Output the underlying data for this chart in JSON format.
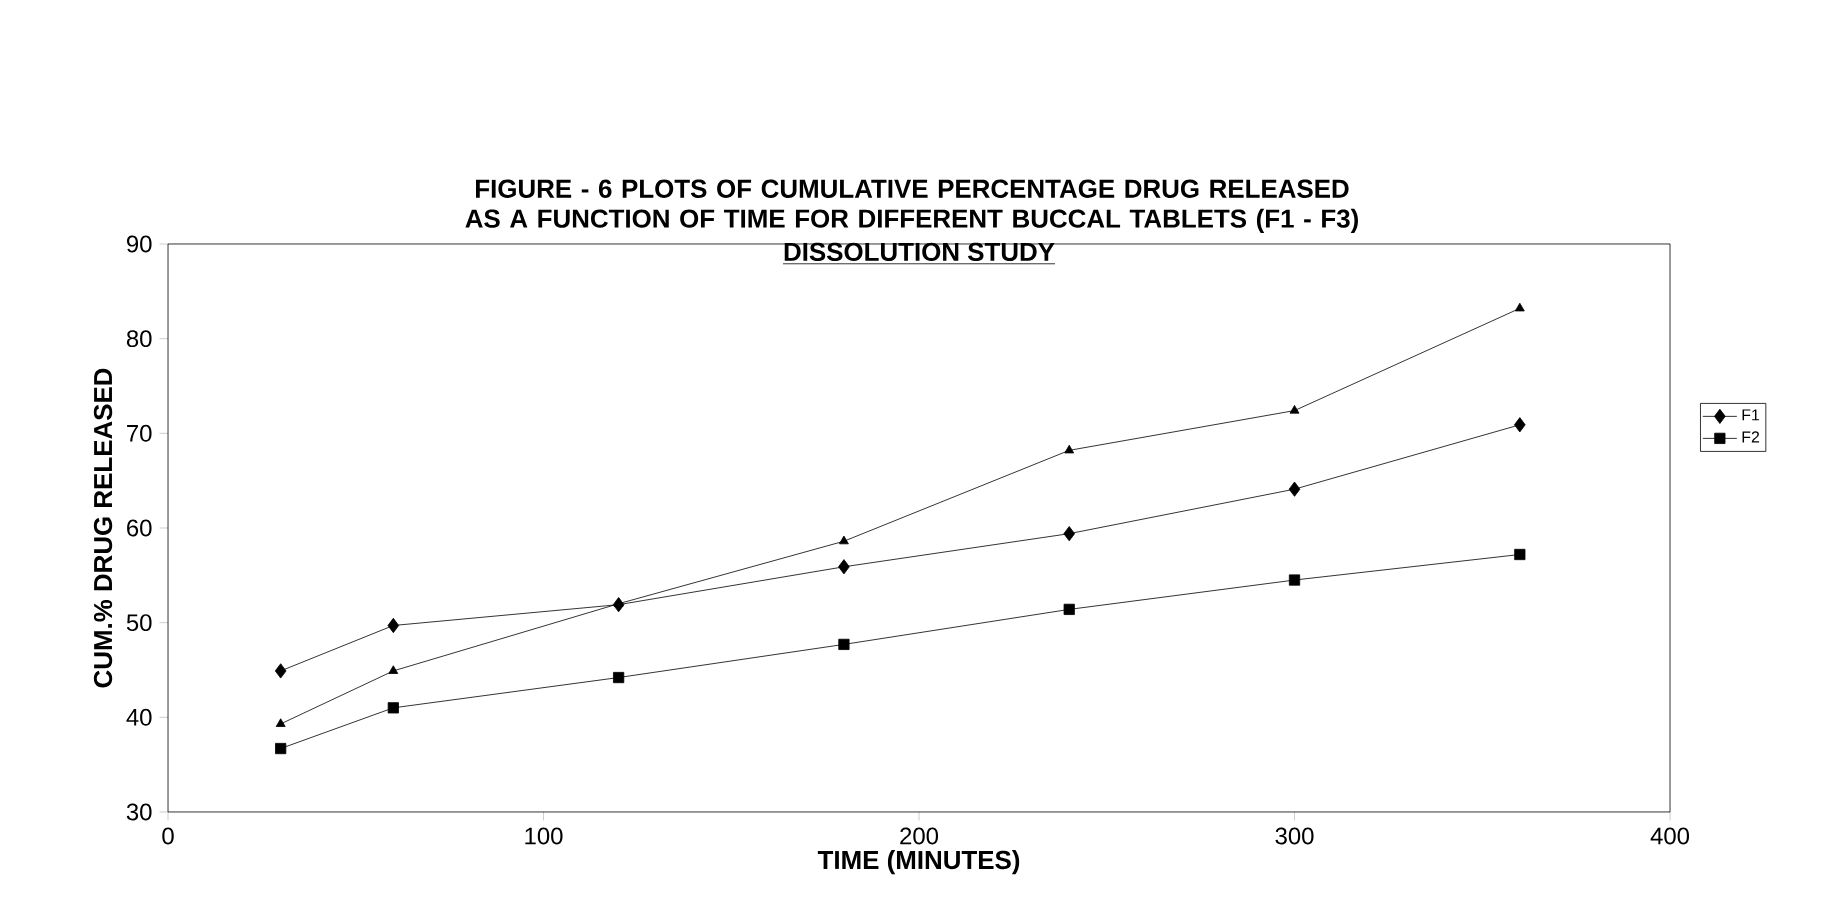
{
  "chart_data": {
    "type": "line",
    "title": "FIGURE - 6 PLOTS OF CUMULATIVE PERCENTAGE DRUG RELEASED AS A FUNCTION OF TIME FOR DIFFERENT BUCCAL TABLETS (F1 - F3)",
    "subtitle": "DISSOLUTION STUDY",
    "xlabel": "TIME (MINUTES)",
    "ylabel": "CUM.% DRUG RELEASED",
    "x": [
      30,
      60,
      120,
      180,
      240,
      300,
      360
    ],
    "series": [
      {
        "name": "F1",
        "color": "#000000",
        "marker": "diamond",
        "values": [
          44.9,
          49.7,
          51.9,
          55.9,
          59.4,
          64.1,
          70.9
        ]
      },
      {
        "name": "F2",
        "color": "#000000",
        "marker": "square",
        "values": [
          36.7,
          41.0,
          44.2,
          47.7,
          51.4,
          54.5,
          57.2
        ]
      },
      {
        "color": "#000000",
        "marker": "triangle",
        "values": [
          39.3,
          44.9,
          52.0,
          58.6,
          68.2,
          72.4,
          83.2
        ]
      }
    ],
    "xlim": [
      0,
      400
    ],
    "xticks": [
      0,
      100,
      200,
      300,
      400
    ],
    "ylim": [
      30,
      90
    ],
    "yticks": [
      30,
      40,
      50,
      60,
      70,
      80,
      90
    ],
    "grid": false,
    "legend": "right",
    "line_style": "solid"
  }
}
